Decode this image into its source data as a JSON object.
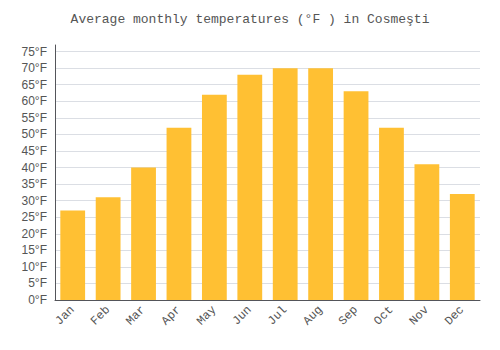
{
  "chart_data": {
    "type": "bar",
    "title": "Average monthly temperatures (°F ) in Cosmeşti",
    "categories": [
      "Jan",
      "Feb",
      "Mar",
      "Apr",
      "May",
      "Jun",
      "Jul",
      "Aug",
      "Sep",
      "Oct",
      "Nov",
      "Dec"
    ],
    "values": [
      27,
      31,
      40,
      52,
      62,
      68,
      70,
      70,
      63,
      52,
      41,
      32
    ],
    "color": "#FFC033",
    "ylim": [
      0,
      77
    ],
    "yticks": [
      {
        "value": 0,
        "label": "0°F"
      },
      {
        "value": 5,
        "label": "5°F"
      },
      {
        "value": 10,
        "label": "10°F"
      },
      {
        "value": 15,
        "label": "15°F"
      },
      {
        "value": 20,
        "label": "20°F"
      },
      {
        "value": 25,
        "label": "25°F"
      },
      {
        "value": 30,
        "label": "30°F"
      },
      {
        "value": 35,
        "label": "35°F"
      },
      {
        "value": 40,
        "label": "40°F"
      },
      {
        "value": 45,
        "label": "45°F"
      },
      {
        "value": 50,
        "label": "50°F"
      },
      {
        "value": 55,
        "label": "55°F"
      },
      {
        "value": 60,
        "label": "60°F"
      },
      {
        "value": 65,
        "label": "65°F"
      },
      {
        "value": 70,
        "label": "70°F"
      },
      {
        "value": 75,
        "label": "75°F"
      }
    ],
    "grid": true
  }
}
